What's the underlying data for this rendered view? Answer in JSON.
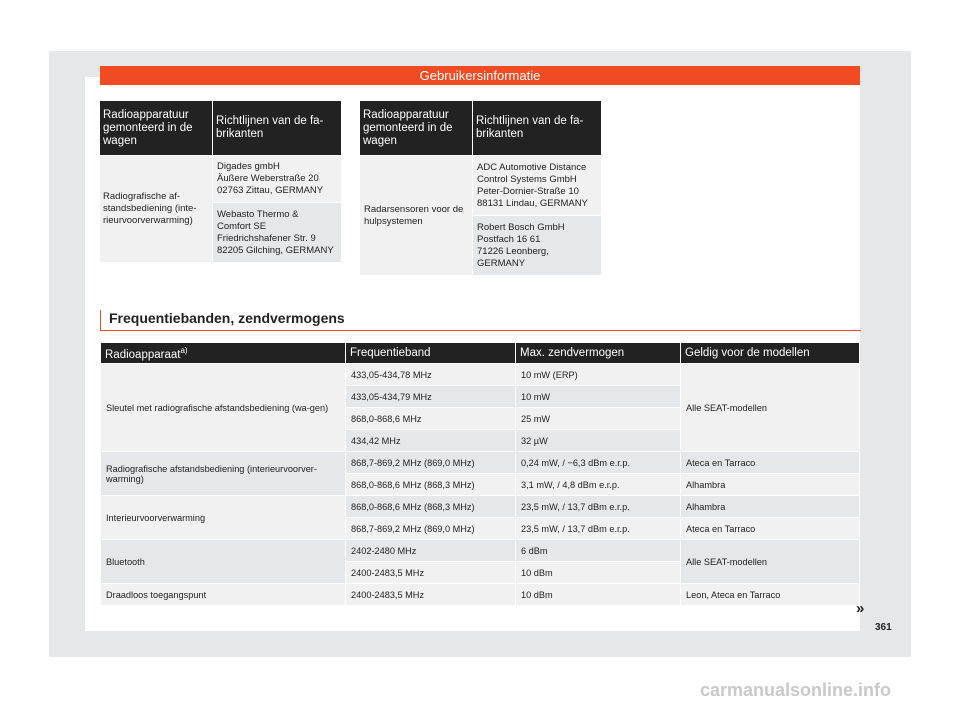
{
  "header": {
    "title": "Gebruikersinformatie"
  },
  "table_left": {
    "col1": "Radioapparatuur gemonteerd in de wagen",
    "col2": "Richtlijnen van de fa-brikanten",
    "row_label": "Radiografische af-\nstandsbediening (inte-\nrieurvoorverwarming)",
    "entries": [
      "Digades gmbH\nÄußere Weberstraße 20\n02763 Zittau, GERMANY",
      "Webasto Thermo &\nComfort SE\nFriedrichshafener Str. 9\n82205 Gilching, GERMANY"
    ]
  },
  "table_right": {
    "col1": "Radioapparatuur gemonteerd in de wagen",
    "col2": "Richtlijnen van de fa-brikanten",
    "row_label": "Radarsensoren voor de\nhulpsystemen",
    "entries": [
      "ADC Automotive Distance\nControl Systems GmbH\nPeter-Dornier-Straße 10\n88131 Lindau, GERMANY",
      "Robert Bosch GmbH\nPostfach 16 61\n71226 Leonberg,\nGERMANY"
    ]
  },
  "section": {
    "title": "Frequentiebanden, zendvermogens"
  },
  "freq_table": {
    "headers": {
      "device": "Radioapparaat",
      "device_note": "a)",
      "band": "Frequentieband",
      "power": "Max. zendvermogen",
      "models": "Geldig voor de modellen"
    },
    "rows": {
      "r1": {
        "device": "Sleutel met radiografische afstandsbediening (wa-gen)",
        "models": "Alle SEAT-modellen",
        "items": [
          {
            "band": "433,05-434,78 MHz",
            "power": "10 mW (ERP)"
          },
          {
            "band": "433,05-434,79 MHz",
            "power": "10 mW"
          },
          {
            "band": "868,0-868,6 MHz",
            "power": "25 mW"
          },
          {
            "band": "434,42 MHz",
            "power": "32 µW"
          }
        ]
      },
      "r2": {
        "device": "Radiografische afstandsbediening (interieurvoorver-warming)",
        "items": [
          {
            "band": "868,7-869,2 MHz (869,0 MHz)",
            "power": "0,24 mW, / −6,3 dBm e.r.p.",
            "models": "Ateca en Tarraco"
          },
          {
            "band": "868,0-868,6 MHz (868,3 MHz)",
            "power": "3,1 mW, / 4,8 dBm e.r.p.",
            "models": "Alhambra"
          }
        ]
      },
      "r3": {
        "device": "Interieurvoorverwarming",
        "items": [
          {
            "band": "868,0-868,6 MHz (868,3 MHz)",
            "power": "23,5 mW, / 13,7 dBm e.r.p.",
            "models": "Alhambra"
          },
          {
            "band": "868,7-869,2 MHz (869,0 MHz)",
            "power": "23,5 mW, / 13,7 dBm e.r.p.",
            "models": "Ateca en Tarraco"
          }
        ]
      },
      "r4": {
        "device": "Bluetooth",
        "models": "Alle SEAT-modellen",
        "items": [
          {
            "band": "2402-2480 MHz",
            "power": "6 dBm"
          },
          {
            "band": "2400-2483,5 MHz",
            "power": "10 dBm"
          }
        ]
      },
      "r5": {
        "device": "Draadloos toegangspunt",
        "band": "2400-2483,5 MHz",
        "power": "10 dBm",
        "models": "Leon, Ateca en Tarraco"
      }
    }
  },
  "footer": {
    "arrow": "»",
    "page_number": "361",
    "watermark": "carmanualsonline.info"
  }
}
